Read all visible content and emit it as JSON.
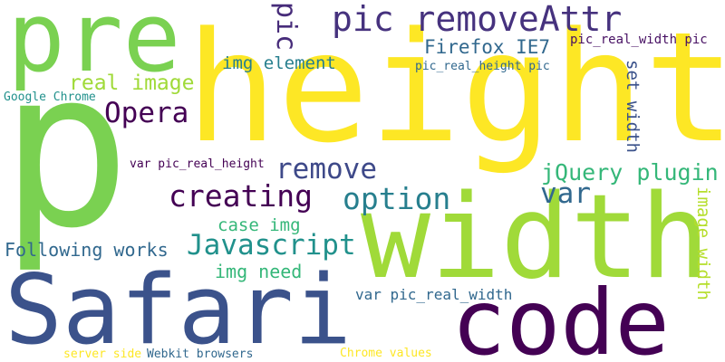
{
  "words": {
    "p": {
      "text": "p",
      "color": "#7AD151"
    },
    "height": {
      "text": "height",
      "color": "#FDE725"
    },
    "width": {
      "text": "width",
      "color": "#A0DA39"
    },
    "safari": {
      "text": "Safari",
      "color": "#3B528B"
    },
    "code": {
      "text": "code",
      "color": "#440154"
    },
    "pre": {
      "text": "pre",
      "color": "#7AD151"
    },
    "pic_removeattr": {
      "text": "pic removeAttr",
      "color": "#46327E"
    },
    "pic": {
      "text": "pic",
      "color": "#472C7A"
    },
    "firefox_ie7": {
      "text": "Firefox IE7",
      "color": "#31688E"
    },
    "pic_real_width_pic": {
      "text": "pic_real_width pic",
      "color": "#471063"
    },
    "img_element": {
      "text": "img element",
      "color": "#277F8E"
    },
    "pic_real_height_pic": {
      "text": "pic_real_height pic",
      "color": "#31688E"
    },
    "real_image": {
      "text": "real image",
      "color": "#A0DA39"
    },
    "google_chrome": {
      "text": "Google Chrome",
      "color": "#21918C"
    },
    "opera": {
      "text": "Opera",
      "color": "#440154"
    },
    "set_width": {
      "text": "set width",
      "color": "#3B528B"
    },
    "var_pic_real_height": {
      "text": "var pic_real_height",
      "color": "#440154"
    },
    "remove": {
      "text": "remove",
      "color": "#3E4989"
    },
    "jquery_plugin": {
      "text": "jQuery plugin",
      "color": "#35B779"
    },
    "creating": {
      "text": "creating",
      "color": "#440154"
    },
    "option": {
      "text": "option",
      "color": "#277F8E"
    },
    "var": {
      "text": "var",
      "color": "#31688E"
    },
    "case_img": {
      "text": "case img",
      "color": "#35B779"
    },
    "image_width": {
      "text": "image width",
      "color": "#B5DE2B"
    },
    "javascript": {
      "text": "Javascript",
      "color": "#21918C"
    },
    "following_works": {
      "text": "Following works",
      "color": "#31688E"
    },
    "img_need": {
      "text": "img need",
      "color": "#35B779"
    },
    "var_pic_real_width": {
      "text": "var pic_real_width",
      "color": "#31688E"
    },
    "server_side": {
      "text": "server side",
      "color": "#FDE725"
    },
    "webkit_browsers": {
      "text": "Webkit browsers",
      "color": "#31688E"
    },
    "chrome_values": {
      "text": "Chrome values",
      "color": "#FDE725"
    }
  }
}
